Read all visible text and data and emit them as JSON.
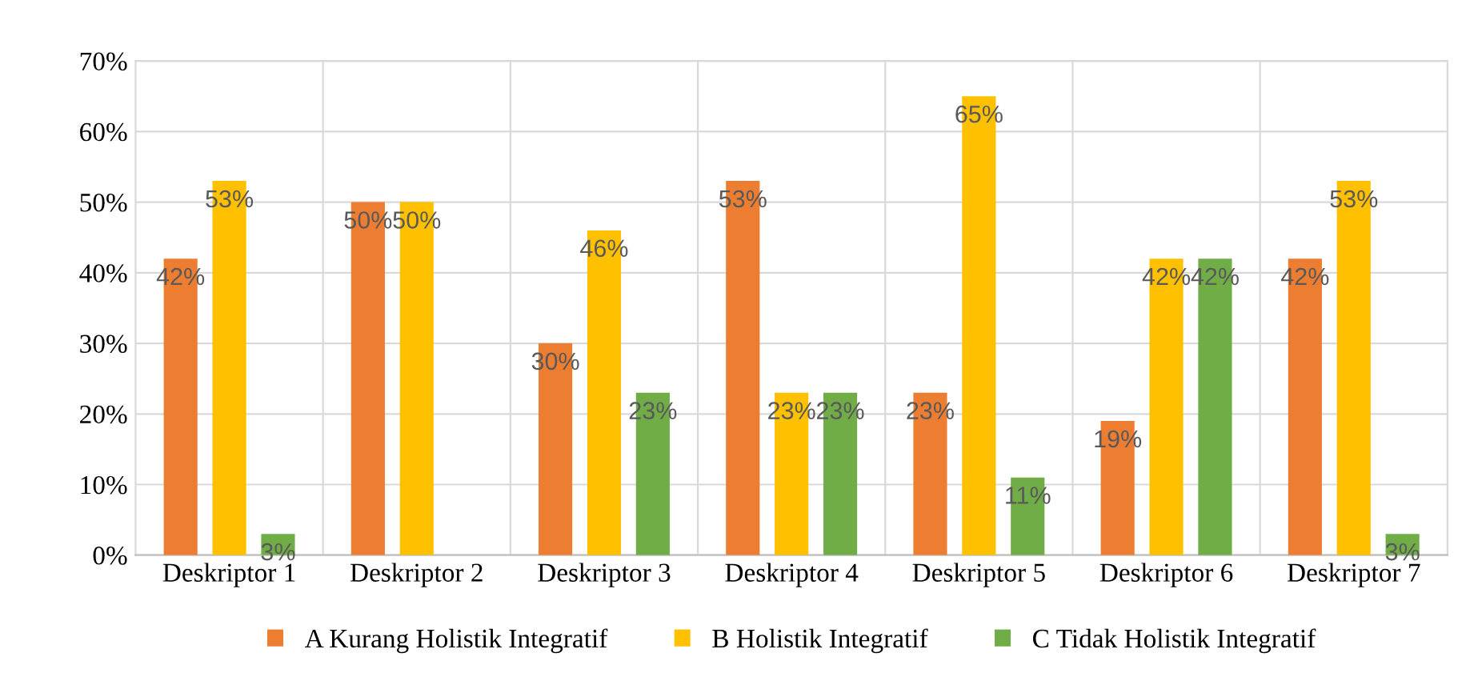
{
  "chart_data": {
    "type": "bar",
    "categories": [
      "Deskriptor 1",
      "Deskriptor 2",
      "Deskriptor 3",
      "Deskriptor 4",
      "Deskriptor 5",
      "Deskriptor 6",
      "Deskriptor 7"
    ],
    "series": [
      {
        "name": "A Kurang Holistik Integratif",
        "color": "#ed7d31",
        "values": [
          42,
          50,
          30,
          53,
          23,
          19,
          42
        ],
        "value_labels": [
          "42%",
          "50%",
          "30%",
          "53%",
          "23%",
          "19%",
          "42%"
        ]
      },
      {
        "name": "B Holistik Integratif",
        "color": "#ffc000",
        "values": [
          53,
          50,
          46,
          23,
          65,
          42,
          53
        ],
        "value_labels": [
          "53%",
          "50%",
          "46%",
          "23%",
          "65%",
          "42%",
          "53%"
        ]
      },
      {
        "name": "C Tidak Holistik Integratif",
        "color": "#70ad47",
        "values": [
          3,
          null,
          23,
          23,
          11,
          42,
          3
        ],
        "value_labels": [
          "3%",
          null,
          "23%",
          "23%",
          "11%",
          "42%",
          "3%"
        ]
      }
    ],
    "ylim": [
      0,
      70
    ],
    "yticks": [
      {
        "value": 0,
        "label": "0%"
      },
      {
        "value": 10,
        "label": "10%"
      },
      {
        "value": 20,
        "label": "20%"
      },
      {
        "value": 30,
        "label": "30%"
      },
      {
        "value": 40,
        "label": "40%"
      },
      {
        "value": 50,
        "label": "50%"
      },
      {
        "value": 60,
        "label": "60%"
      },
      {
        "value": 70,
        "label": "70%"
      }
    ],
    "grid": true,
    "legend": "bottom"
  }
}
